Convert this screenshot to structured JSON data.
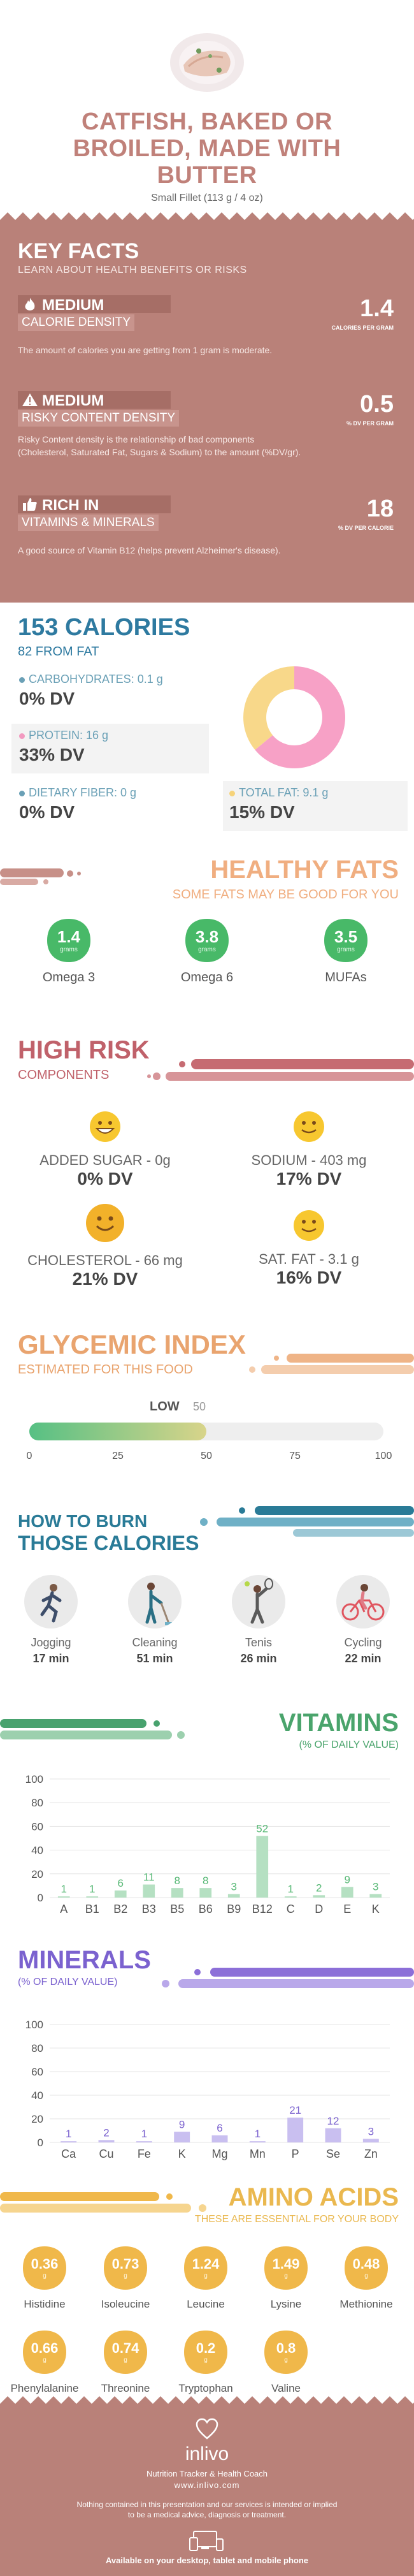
{
  "header": {
    "title_lines": [
      "CATFISH, BAKED OR",
      "BROILED, MADE WITH",
      "BUTTER"
    ],
    "serving": "Small Fillet (113 g / 4 oz)"
  },
  "key_facts": {
    "title": "KEY FACTS",
    "subtitle": "LEARN ABOUT HEALTH BENEFITS OR RISKS",
    "items": [
      {
        "level": "MEDIUM",
        "category": "CALORIE DENSITY",
        "value": "1.4",
        "unit": "CALORIES PER GRAM",
        "desc_lines": [
          "The amount of calories you are getting from 1 gram is moderate."
        ]
      },
      {
        "level": "MEDIUM",
        "category": "RISKY CONTENT DENSITY",
        "value": "0.5",
        "unit": "% DV PER GRAM",
        "desc_lines": [
          "Risky Content density is the relationship of bad components",
          "(Cholesterol, Saturated Fat, Sugars & Sodium) to the amount (%DV/gr)."
        ]
      },
      {
        "level": "RICH  IN",
        "category": "VITAMINS & MINERALS",
        "value": "18",
        "unit": "% DV PER CALORIE",
        "desc_lines": [
          "A good source of Vitamin B12 (helps prevent Alzheimer's disease)."
        ]
      }
    ]
  },
  "calories": {
    "title": "153 CALORIES",
    "from_fat": "82 FROM FAT",
    "nutrients": [
      {
        "label": "CARBOHYDRATES: 0.1 g",
        "dv": "0% DV",
        "color": "#6aa0b6",
        "shade": false
      },
      {
        "label": "PROTEIN: 16 g",
        "dv": "33% DV",
        "color": "#f29ac0",
        "shade": true
      },
      {
        "label": "DIETARY FIBER: 0 g",
        "dv": "0% DV",
        "color": "#6aa0b6",
        "shade": false
      }
    ],
    "fat": {
      "label": "TOTAL FAT: 9.1 g",
      "dv": "15% DV",
      "color": "#f6d37a"
    },
    "donut": {
      "protein_pct": 0.64,
      "fat_pct": 0.36,
      "protein_color": "#f7a1c6",
      "fat_color": "#f8d88a"
    }
  },
  "healthy_fats": {
    "title": "HEALTHY FATS",
    "subtitle": "SOME FATS MAY BE GOOD FOR YOU",
    "items": [
      {
        "value": "1.4",
        "unit": "grams",
        "name": "Omega 3"
      },
      {
        "value": "3.8",
        "unit": "grams",
        "name": "Omega 6"
      },
      {
        "value": "3.5",
        "unit": "grams",
        "name": "MUFAs"
      }
    ],
    "color": "#48b968"
  },
  "high_risk": {
    "title": "HIGH RISK",
    "subtitle": "COMPONENTS",
    "items": [
      {
        "label": "ADDED SUGAR - 0g",
        "dv": "0% DV",
        "face": "grin"
      },
      {
        "label": "SODIUM - 403 mg",
        "dv": "17% DV",
        "face": "smile"
      },
      {
        "label": "CHOLESTEROL - 66 mg",
        "dv": "21% DV",
        "face": "smile-big"
      },
      {
        "label": "SAT. FAT - 3.1 g",
        "dv": "16% DV",
        "face": "smile"
      }
    ]
  },
  "glycemic": {
    "title": "GLYCEMIC INDEX",
    "subtitle": "ESTIMATED FOR THIS FOOD",
    "level": "LOW",
    "value": 50,
    "value_label": "50",
    "max": 100,
    "ticks": [
      "0",
      "25",
      "50",
      "75",
      "100"
    ]
  },
  "burn": {
    "title_small": "HOW TO BURN",
    "title_big": "THOSE CALORIES",
    "activities": [
      {
        "name": "Jogging",
        "minutes": "17 min"
      },
      {
        "name": "Cleaning",
        "minutes": "51 min"
      },
      {
        "name": "Tenis",
        "minutes": "26 min"
      },
      {
        "name": "Cycling",
        "minutes": "22 min"
      }
    ]
  },
  "vitamins": {
    "title": "VITAMINS",
    "subtitle": "(% OF DAILY VALUE)",
    "chart_data": {
      "type": "bar",
      "categories": [
        "A",
        "B1",
        "B2",
        "B3",
        "B5",
        "B6",
        "B9",
        "B12",
        "C",
        "D",
        "E",
        "K"
      ],
      "values": [
        1,
        1,
        6,
        11,
        8,
        8,
        3,
        52,
        1,
        2,
        9,
        3
      ],
      "value_labels": [
        "1",
        "1",
        "6",
        "11",
        "8",
        "8",
        "3",
        "52",
        "1",
        "2",
        "9",
        "3"
      ],
      "y_ticks": [
        "100",
        "80",
        "60",
        "40",
        "20",
        "0"
      ],
      "ylim": [
        0,
        100
      ],
      "bar_color": "#b5e0c2",
      "label_color": "#59b977"
    }
  },
  "minerals": {
    "title": "MINERALS",
    "subtitle": "(% OF DAILY VALUE)",
    "chart_data": {
      "type": "bar",
      "categories": [
        "Ca",
        "Cu",
        "Fe",
        "K",
        "Mg",
        "Mn",
        "P",
        "Se",
        "Zn"
      ],
      "values": [
        1,
        2,
        1,
        9,
        6,
        1,
        21,
        12,
        3
      ],
      "value_labels": [
        "1",
        "2",
        "1",
        "9",
        "6",
        "1",
        "21",
        "12",
        "3"
      ],
      "y_ticks": [
        "100",
        "80",
        "60",
        "40",
        "20",
        "0"
      ],
      "ylim": [
        0,
        100
      ],
      "bar_color": "#c9bff0",
      "label_color": "#7b62cf"
    }
  },
  "amino": {
    "title": "AMINO ACIDS",
    "subtitle": "THESE ARE ESSENTIAL FOR YOUR BODY",
    "unit": "g",
    "items": [
      {
        "value": "0.36",
        "name": "Histidine"
      },
      {
        "value": "0.73",
        "name": "Isoleucine"
      },
      {
        "value": "1.24",
        "name": "Leucine"
      },
      {
        "value": "1.49",
        "name": "Lysine"
      },
      {
        "value": "0.48",
        "name": "Methionine"
      },
      {
        "value": "0.66",
        "name": "Phenylalanine"
      },
      {
        "value": "0.74",
        "name": "Threonine"
      },
      {
        "value": "0.2",
        "name": "Tryptophan"
      },
      {
        "value": "0.8",
        "name": "Valine"
      }
    ],
    "color": "#f0b84a"
  },
  "footer": {
    "brand": "inlivo",
    "tagline": "Nutrition Tracker & Health Coach",
    "url": "www.inlivo.com",
    "disclaimer_lines": [
      "Nothing contained in this presentation and our services is intended or implied",
      "to be a medical advice, diagnosis or treatment."
    ],
    "available": "Available on your desktop, tablet and mobile phone"
  }
}
